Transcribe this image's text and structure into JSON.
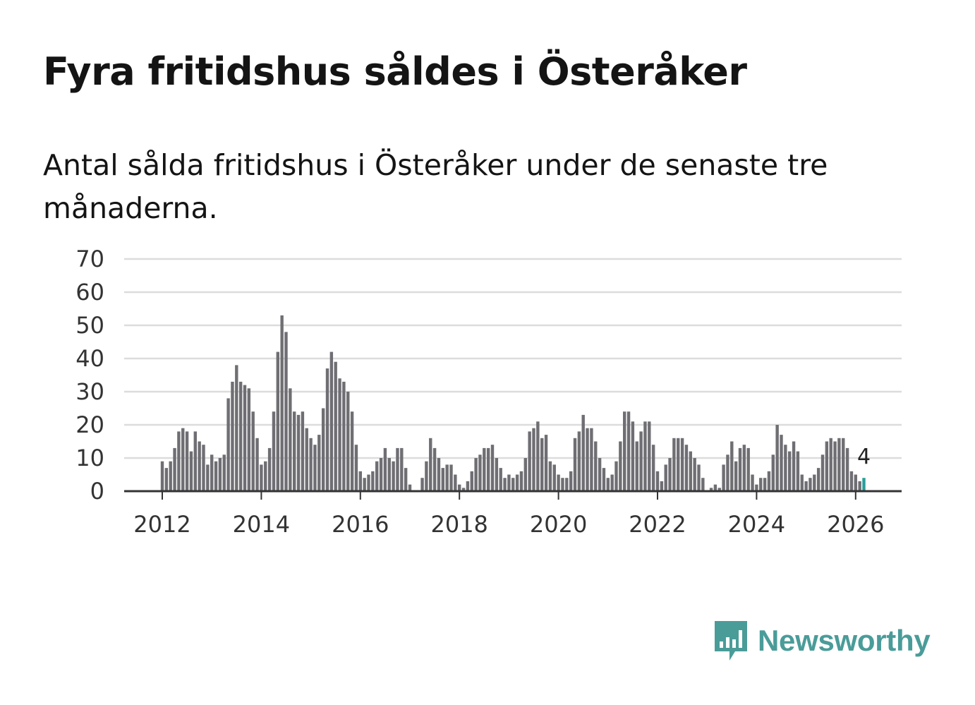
{
  "header": {
    "title": "Fyra fritidshus såldes i Österåker",
    "subtitle": "Antal sålda fritidshus i Österåker under de senaste tre månaderna."
  },
  "colors": {
    "bar": "#6f6e73",
    "highlight": "#2a9d99",
    "grid": "#dcdcdc",
    "axis": "#333333",
    "brand": "#4a9c99"
  },
  "logo": {
    "icon": "newsworthy-chart-bubble-icon",
    "text": "Newsworthy"
  },
  "chart_data": {
    "type": "bar",
    "title": "Fyra fritidshus såldes i Österåker",
    "subtitle": "Antal sålda fritidshus i Österåker under de senaste tre månaderna.",
    "xlabel": "",
    "ylabel": "",
    "ylim": [
      0,
      70
    ],
    "yticks": [
      0,
      10,
      20,
      30,
      40,
      50,
      60,
      70
    ],
    "grid": true,
    "xticks": [
      "2012",
      "2014",
      "2016",
      "2018",
      "2020",
      "2022",
      "2024",
      "2026"
    ],
    "start": "2012-01",
    "frequency": "monthly",
    "values": [
      9,
      7,
      9,
      13,
      18,
      19,
      18,
      12,
      18,
      15,
      14,
      8,
      11,
      9,
      10,
      11,
      28,
      33,
      38,
      33,
      32,
      31,
      24,
      16,
      8,
      9,
      13,
      24,
      42,
      53,
      48,
      31,
      24,
      23,
      24,
      19,
      16,
      14,
      17,
      25,
      37,
      42,
      39,
      34,
      33,
      30,
      24,
      14,
      6,
      4,
      5,
      6,
      9,
      10,
      13,
      10,
      9,
      13,
      13,
      7,
      2,
      0,
      0,
      4,
      9,
      16,
      13,
      10,
      7,
      8,
      8,
      5,
      2,
      1,
      3,
      6,
      10,
      11,
      13,
      13,
      14,
      10,
      7,
      4,
      5,
      4,
      5,
      6,
      10,
      18,
      19,
      21,
      16,
      17,
      9,
      8,
      5,
      4,
      4,
      6,
      16,
      18,
      23,
      19,
      19,
      15,
      10,
      7,
      4,
      5,
      9,
      15,
      24,
      24,
      21,
      15,
      18,
      21,
      21,
      14,
      6,
      3,
      8,
      10,
      16,
      16,
      16,
      14,
      12,
      10,
      8,
      4,
      0,
      1,
      2,
      1,
      8,
      11,
      15,
      9,
      13,
      14,
      13,
      5,
      2,
      4,
      4,
      6,
      11,
      20,
      17,
      14,
      12,
      15,
      12,
      5,
      3,
      4,
      5,
      7,
      11,
      15,
      16,
      15,
      16,
      16,
      13,
      6,
      5,
      3,
      4
    ],
    "highlight": {
      "period": "2026-03",
      "value": 4,
      "label": "4"
    }
  }
}
